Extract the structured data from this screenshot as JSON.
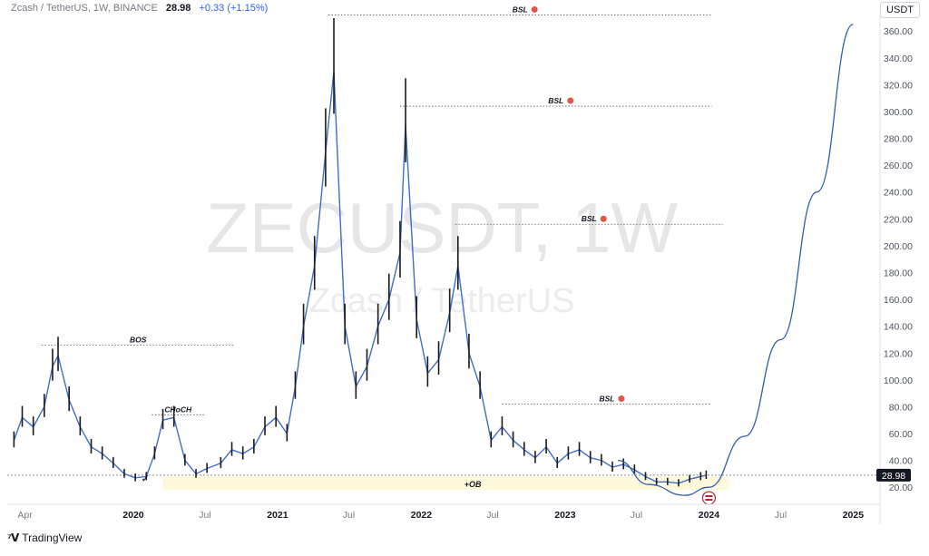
{
  "header": {
    "symbol_desc": "Zcash / TetherUS, 1W, BINANCE",
    "last_price": "28.98",
    "change": "+0.33 (+1.15%)"
  },
  "currency": "USDT",
  "footer": {
    "brand": "TradingView",
    "logo_icon": "tradingview-logo-icon"
  },
  "watermark": {
    "symbol": "ZECUSDT, 1W",
    "name": "Zcash / TetherUS"
  },
  "chart_data": {
    "type": "line",
    "y_axis": {
      "range": [
        10,
        375
      ],
      "ticks": [
        20,
        40,
        60,
        80,
        100,
        120,
        140,
        160,
        180,
        200,
        220,
        240,
        260,
        280,
        300,
        320,
        340,
        360
      ],
      "tick_labels": [
        "20.00",
        "40.00",
        "60.00",
        "80.00",
        "100.00",
        "120.00",
        "140.00",
        "160.00",
        "180.00",
        "200.00",
        "220.00",
        "240.00",
        "260.00",
        "280.00",
        "300.00",
        "320.00",
        "340.00",
        "360.00"
      ],
      "position": "right"
    },
    "x_axis": {
      "range": [
        "2019-02-15",
        "2025-03-01"
      ],
      "ticks": [
        "2019-04-01",
        "2020-01-01",
        "2020-07-01",
        "2021-01-01",
        "2021-07-01",
        "2022-01-01",
        "2022-07-01",
        "2023-01-01",
        "2023-07-01",
        "2024-01-01",
        "2024-07-01",
        "2025-01-01"
      ],
      "tick_labels": [
        "Apr",
        "2020",
        "Jul",
        "2021",
        "Jul",
        "2022",
        "Jul",
        "2023",
        "Jul",
        "2024",
        "Jul",
        "2025"
      ]
    },
    "grid": false,
    "price_series": {
      "x": [
        "2019-03-04",
        "2019-03-25",
        "2019-04-22",
        "2019-05-20",
        "2019-06-10",
        "2019-06-24",
        "2019-07-22",
        "2019-08-19",
        "2019-09-16",
        "2019-10-14",
        "2019-11-11",
        "2019-12-09",
        "2020-01-06",
        "2020-02-03",
        "2020-02-24",
        "2020-03-16",
        "2020-04-13",
        "2020-05-11",
        "2020-06-08",
        "2020-07-06",
        "2020-08-10",
        "2020-09-07",
        "2020-10-05",
        "2020-11-02",
        "2020-11-30",
        "2020-12-28",
        "2021-01-25",
        "2021-02-15",
        "2021-03-08",
        "2021-04-05",
        "2021-05-03",
        "2021-05-24",
        "2021-06-21",
        "2021-07-19",
        "2021-08-16",
        "2021-09-13",
        "2021-10-11",
        "2021-11-08",
        "2021-11-22",
        "2021-12-20",
        "2022-01-17",
        "2022-02-14",
        "2022-03-14",
        "2022-04-04",
        "2022-05-02",
        "2022-05-30",
        "2022-06-27",
        "2022-07-25",
        "2022-08-22",
        "2022-09-19",
        "2022-10-17",
        "2022-11-14",
        "2022-12-12",
        "2023-01-09",
        "2023-02-06",
        "2023-03-06",
        "2023-04-03",
        "2023-05-01",
        "2023-05-29",
        "2023-06-26",
        "2023-07-24",
        "2023-08-21",
        "2023-09-18",
        "2023-10-16",
        "2023-11-13",
        "2023-12-11",
        "2023-12-25"
      ],
      "y": [
        55,
        72,
        65,
        80,
        110,
        118,
        85,
        65,
        50,
        45,
        38,
        30,
        27,
        28,
        45,
        70,
        72,
        40,
        30,
        34,
        38,
        48,
        45,
        50,
        65,
        72,
        60,
        95,
        140,
        185,
        270,
        330,
        140,
        95,
        110,
        140,
        160,
        195,
        290,
        145,
        105,
        115,
        150,
        185,
        120,
        95,
        55,
        65,
        55,
        48,
        42,
        50,
        38,
        45,
        48,
        42,
        40,
        35,
        37,
        33,
        28,
        24,
        24,
        23,
        26,
        28,
        29
      ]
    },
    "projection_curve": {
      "x": [
        "2023-05-15",
        "2023-08-01",
        "2023-11-01",
        "2024-01-01",
        "2024-04-01",
        "2024-07-01",
        "2024-10-01",
        "2025-01-01"
      ],
      "y": [
        40,
        22,
        14,
        20,
        58,
        130,
        240,
        365
      ]
    },
    "levels": [
      {
        "label": "BSL",
        "y": 372,
        "x_start": "2021-05-10",
        "x_end": "2024-01-08",
        "icon": "tradingview-marker-icon"
      },
      {
        "label": "BSL",
        "y": 304,
        "x_start": "2021-11-08",
        "x_end": "2024-01-08",
        "icon": "tradingview-marker-icon"
      },
      {
        "label": "BSL",
        "y": 216,
        "x_start": "2022-03-28",
        "x_end": "2024-02-05",
        "icon": "tradingview-marker-icon"
      },
      {
        "label": "BSL",
        "y": 82,
        "x_start": "2022-07-25",
        "x_end": "2024-01-08",
        "icon": "tradingview-marker-icon"
      },
      {
        "label": "BOS",
        "y": 126,
        "x_start": "2019-05-13",
        "x_end": "2020-09-14"
      },
      {
        "label": "CHoCH",
        "y": 74,
        "x_start": "2020-02-17",
        "x_end": "2020-06-29"
      },
      {
        "label": "",
        "y": 29,
        "x_start": "2019-02-15",
        "x_end": "2025-03-01"
      }
    ],
    "zones": [
      {
        "label": "+OB",
        "y_low": 18,
        "y_high": 28,
        "x_start": "2020-03-16",
        "x_end": "2024-02-19",
        "color": "#fff9dc"
      }
    ],
    "annotations": [
      {
        "text": "✓",
        "x": "2020-01-20",
        "y": 24
      }
    ],
    "last_price_label": {
      "value": "28.98",
      "y": 28.98
    },
    "event_icon": {
      "x": "2024-01-01",
      "y": 12,
      "icon": "us-flag-icon"
    },
    "colors": {
      "price": "#3f6dc8",
      "curve": "#2d5fb3",
      "level": "#555555",
      "zone": "#fff9dc",
      "marker": "#e05545"
    }
  }
}
